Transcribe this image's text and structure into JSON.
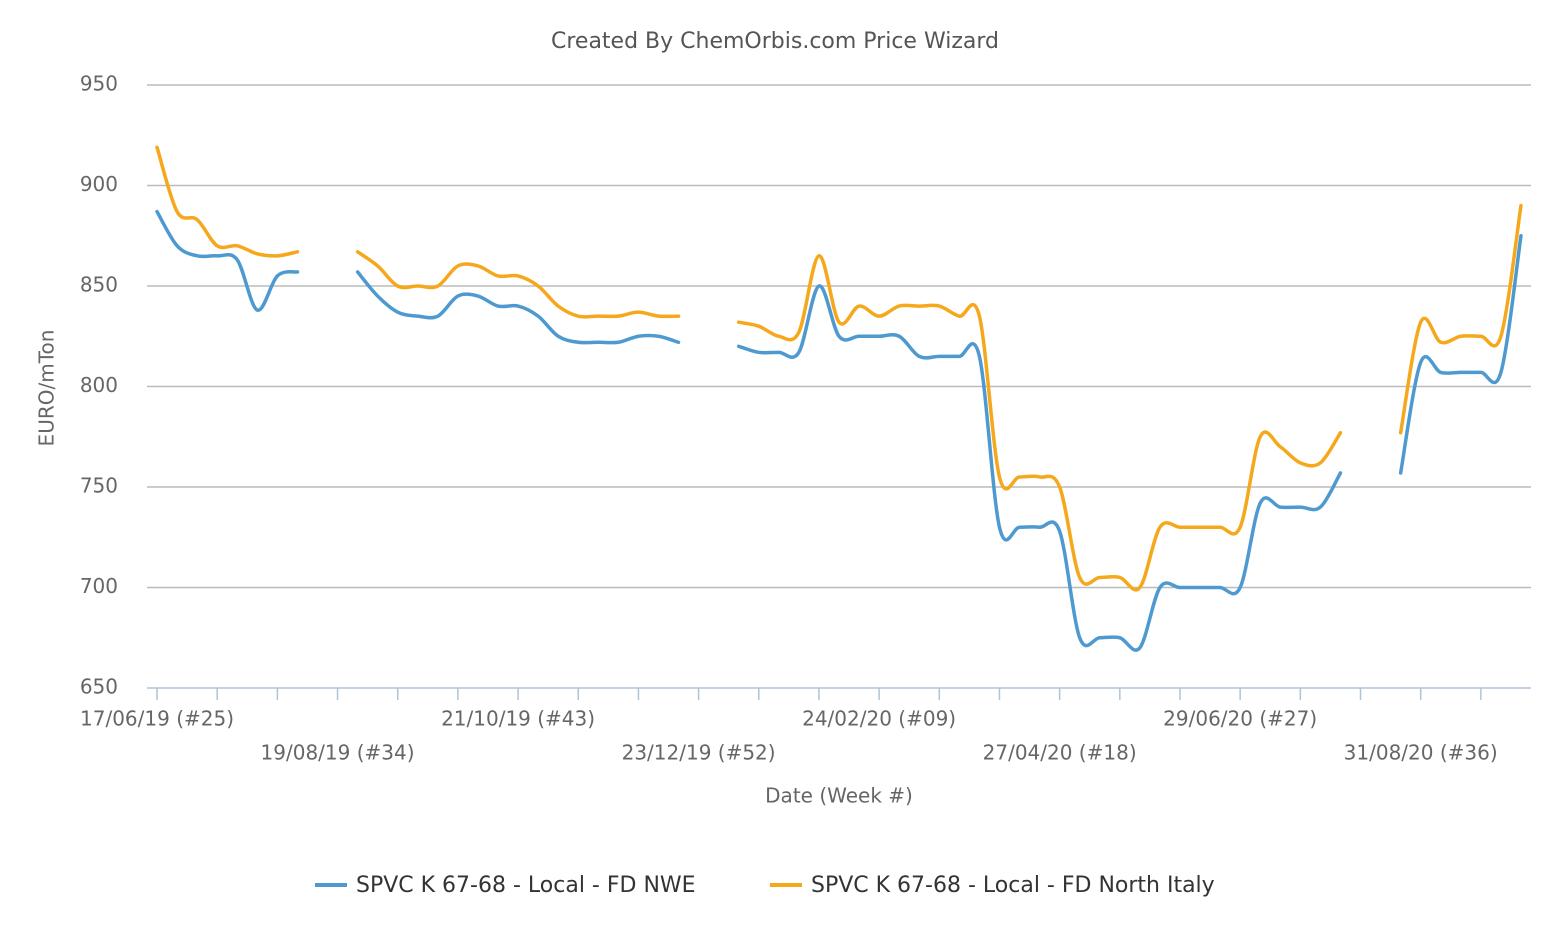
{
  "chart_data": {
    "type": "line",
    "title": "Created By ChemOrbis.com Price Wizard",
    "x_label": "Date (Week #)",
    "y_label": "EURO/mTon",
    "categories": [
      "17/06/19 (#25)",
      null,
      null,
      null,
      null,
      null,
      null,
      null,
      null,
      "19/08/19 (#34)",
      null,
      null,
      null,
      null,
      null,
      null,
      null,
      null,
      "21/10/19 (#43)",
      null,
      null,
      null,
      null,
      null,
      null,
      null,
      null,
      "23/12/19 (#52)",
      null,
      null,
      null,
      null,
      null,
      null,
      null,
      null,
      "24/02/20 (#09)",
      null,
      null,
      null,
      null,
      null,
      null,
      null,
      null,
      "27/04/20 (#18)",
      null,
      null,
      null,
      null,
      null,
      null,
      null,
      null,
      "29/06/20 (#27)",
      null,
      null,
      null,
      null,
      null,
      null,
      null,
      null,
      "31/08/20 (#36)",
      null,
      null,
      null,
      null,
      null
    ],
    "series": [
      {
        "name": "SPVC K 67-68 - Local - FD NWE",
        "color": "#4e9ad0",
        "values": [
          887,
          870,
          865,
          865,
          863,
          838,
          855,
          857,
          null,
          null,
          857,
          845,
          837,
          835,
          835,
          845,
          845,
          840,
          840,
          835,
          825,
          822,
          822,
          822,
          825,
          825,
          822,
          null,
          null,
          820,
          817,
          817,
          817,
          850,
          825,
          825,
          825,
          825,
          815,
          815,
          815,
          815,
          730,
          730,
          730,
          728,
          675,
          675,
          675,
          670,
          700,
          700,
          700,
          700,
          700,
          742,
          740,
          740,
          740,
          757,
          null,
          null,
          757,
          812,
          807,
          807,
          807,
          807,
          875
        ]
      },
      {
        "name": "SPVC K 67-68 - Local - FD North Italy",
        "color": "#f5a81c",
        "values": [
          919,
          887,
          883,
          870,
          870,
          866,
          865,
          867,
          null,
          null,
          867,
          860,
          850,
          850,
          850,
          860,
          860,
          855,
          855,
          850,
          840,
          835,
          835,
          835,
          837,
          835,
          835,
          null,
          null,
          832,
          830,
          825,
          827,
          865,
          832,
          840,
          835,
          840,
          840,
          840,
          835,
          835,
          755,
          755,
          755,
          750,
          705,
          705,
          705,
          700,
          730,
          730,
          730,
          730,
          730,
          775,
          770,
          762,
          762,
          777,
          null,
          null,
          777,
          832,
          822,
          825,
          825,
          825,
          890
        ]
      }
    ],
    "ylim": [
      650,
      950
    ],
    "yticks": [
      650,
      700,
      750,
      800,
      850,
      900,
      950
    ],
    "grid": true
  }
}
